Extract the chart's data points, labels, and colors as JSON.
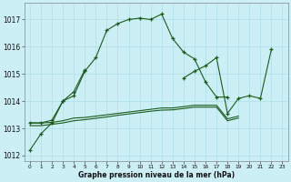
{
  "bg_color": "#cceef5",
  "grid_color": "#aaddea",
  "line_color": "#1a5c1a",
  "ylim": [
    1011.8,
    1017.6
  ],
  "xlim": [
    -0.5,
    23.5
  ],
  "yticks": [
    1012,
    1013,
    1014,
    1015,
    1016,
    1017
  ],
  "xticks": [
    0,
    1,
    2,
    3,
    4,
    5,
    6,
    7,
    8,
    9,
    10,
    11,
    12,
    13,
    14,
    15,
    16,
    17,
    18,
    19,
    20,
    21,
    22,
    23
  ],
  "xlabel": "Graphe pression niveau de la mer (hPa)",
  "line1_x": [
    0,
    1,
    2,
    3,
    4,
    5,
    6,
    7,
    8,
    9,
    10,
    11,
    12,
    13,
    14,
    15,
    16,
    17,
    18
  ],
  "line1_y": [
    1012.2,
    1012.8,
    1013.2,
    1014.0,
    1014.2,
    1015.1,
    1015.6,
    1016.6,
    1016.85,
    1017.0,
    1017.05,
    1017.0,
    1017.2,
    1016.3,
    1015.8,
    1015.55,
    1014.7,
    1014.15,
    1014.15
  ],
  "line2a_x": [
    0,
    1,
    2,
    3,
    4,
    5
  ],
  "line2a_y": [
    1013.2,
    1013.2,
    1013.3,
    1014.0,
    1014.35,
    1015.15
  ],
  "line2b_x": [
    14,
    15,
    16,
    17,
    18,
    19,
    20,
    21,
    22
  ],
  "line2b_y": [
    1014.85,
    1015.1,
    1015.3,
    1015.6,
    1013.55,
    1014.1,
    1014.2,
    1014.1,
    1015.9
  ],
  "line3_x": [
    0,
    1,
    2,
    3,
    4,
    5,
    6,
    7,
    8,
    9,
    10,
    11,
    12,
    13,
    14,
    15,
    16,
    17,
    18,
    19
  ],
  "line3_y": [
    1013.2,
    1013.2,
    1013.22,
    1013.28,
    1013.38,
    1013.4,
    1013.45,
    1013.5,
    1013.55,
    1013.6,
    1013.65,
    1013.7,
    1013.75,
    1013.75,
    1013.8,
    1013.85,
    1013.85,
    1013.85,
    1013.35,
    1013.45
  ],
  "line4_x": [
    0,
    1,
    2,
    3,
    4,
    5,
    6,
    7,
    8,
    9,
    10,
    11,
    12,
    13,
    14,
    15,
    16,
    17,
    18,
    19
  ],
  "line4_y": [
    1013.1,
    1013.1,
    1013.15,
    1013.2,
    1013.28,
    1013.32,
    1013.37,
    1013.42,
    1013.48,
    1013.53,
    1013.58,
    1013.63,
    1013.67,
    1013.68,
    1013.73,
    1013.78,
    1013.78,
    1013.78,
    1013.28,
    1013.38
  ]
}
